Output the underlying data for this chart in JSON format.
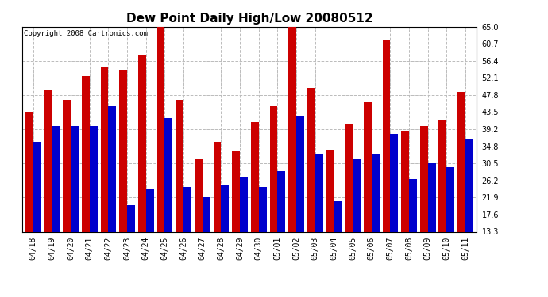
{
  "title": "Dew Point Daily High/Low 20080512",
  "copyright": "Copyright 2008 Cartronics.com",
  "dates": [
    "04/18",
    "04/19",
    "04/20",
    "04/21",
    "04/22",
    "04/23",
    "04/24",
    "04/25",
    "04/26",
    "04/27",
    "04/28",
    "04/29",
    "04/30",
    "05/01",
    "05/02",
    "05/03",
    "05/04",
    "05/05",
    "05/06",
    "05/07",
    "05/08",
    "05/09",
    "05/10",
    "05/11"
  ],
  "highs": [
    43.5,
    49.0,
    46.5,
    52.5,
    55.0,
    54.0,
    58.0,
    65.0,
    46.5,
    31.5,
    36.0,
    33.5,
    41.0,
    45.0,
    65.0,
    49.5,
    34.0,
    40.5,
    46.0,
    61.5,
    38.5,
    40.0,
    41.5,
    48.5
  ],
  "lows": [
    36.0,
    40.0,
    40.0,
    40.0,
    45.0,
    20.0,
    24.0,
    42.0,
    24.5,
    22.0,
    25.0,
    27.0,
    24.5,
    28.5,
    42.5,
    33.0,
    21.0,
    31.5,
    33.0,
    38.0,
    26.5,
    30.5,
    29.5,
    36.5
  ],
  "high_color": "#cc0000",
  "low_color": "#0000cc",
  "bg_color": "#ffffff",
  "grid_color": "#bbbbbb",
  "ymin": 13.3,
  "ymax": 65.0,
  "yticks": [
    13.3,
    17.6,
    21.9,
    26.2,
    30.5,
    34.8,
    39.2,
    43.5,
    47.8,
    52.1,
    56.4,
    60.7,
    65.0
  ],
  "title_fontsize": 11,
  "tick_fontsize": 7,
  "copyright_fontsize": 6.5,
  "bar_width": 0.42,
  "figwidth": 6.9,
  "figheight": 3.75,
  "dpi": 100
}
